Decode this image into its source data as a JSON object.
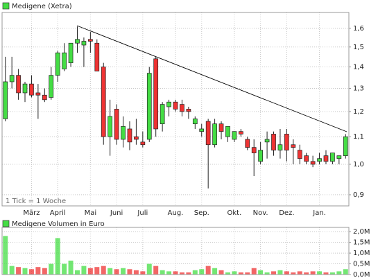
{
  "chart_data": [
    {
      "type": "candlestick",
      "title": "Medigene (Xetra)",
      "log_scale": true,
      "grid": true,
      "annotation": "1 Tick = 1 Woche",
      "up_color": "#44dd44",
      "down_color": "#ee3333",
      "categories": [
        null,
        null,
        null,
        null,
        "März",
        null,
        null,
        null,
        "April",
        null,
        null,
        null,
        null,
        "Mai",
        null,
        null,
        null,
        "Juni",
        null,
        null,
        null,
        "Juli",
        null,
        null,
        null,
        null,
        "Aug.",
        null,
        null,
        null,
        "Sep.",
        null,
        null,
        null,
        null,
        "Okt.",
        null,
        null,
        null,
        "Nov.",
        null,
        null,
        null,
        "Dez.",
        null,
        null,
        null,
        null,
        "Jan.",
        null,
        null,
        null,
        null
      ],
      "series": [
        {
          "name": "Medigene (Xetra)",
          "color": "#44dd44",
          "open": [
            1.17,
            1.33,
            1.36,
            1.28,
            1.32,
            1.28,
            1.27,
            1.26,
            1.36,
            1.39,
            1.42,
            1.52,
            1.51,
            1.54,
            1.52,
            1.4,
            1.1,
            1.21,
            1.09,
            1.13,
            1.1,
            1.08,
            1.09,
            1.44,
            1.15,
            1.22,
            1.24,
            1.23,
            1.21,
            1.15,
            1.12,
            1.16,
            1.07,
            1.15,
            1.1,
            1.09,
            1.12,
            1.09,
            1.06,
            1.01,
            1.08,
            1.11,
            1.05,
            1.11,
            1.07,
            1.05,
            1.03,
            1.01,
            1.01,
            1.03,
            1.01,
            1.02,
            1.03
          ],
          "high": [
            1.45,
            1.45,
            1.39,
            1.33,
            1.36,
            1.32,
            1.3,
            1.4,
            1.48,
            1.52,
            1.52,
            1.61,
            1.55,
            1.58,
            1.54,
            1.42,
            1.25,
            1.23,
            1.18,
            1.16,
            1.17,
            1.12,
            1.4,
            1.45,
            1.24,
            1.25,
            1.25,
            1.25,
            1.22,
            1.18,
            1.15,
            1.17,
            1.17,
            1.16,
            1.14,
            1.12,
            1.13,
            1.1,
            1.09,
            1.08,
            1.12,
            1.12,
            1.13,
            1.13,
            1.09,
            1.07,
            1.04,
            1.03,
            1.04,
            1.05,
            1.04,
            1.03,
            1.11
          ],
          "low": [
            1.16,
            1.3,
            1.25,
            1.24,
            1.26,
            1.17,
            1.24,
            1.25,
            1.33,
            1.38,
            1.4,
            1.47,
            1.4,
            1.47,
            1.38,
            1.07,
            1.03,
            1.07,
            1.06,
            1.05,
            1.07,
            1.06,
            1.08,
            1.1,
            1.12,
            1.18,
            1.2,
            1.18,
            1.17,
            1.13,
            1.1,
            0.92,
            1.06,
            1.09,
            1.08,
            1.08,
            1.1,
            1.05,
            0.96,
            1.0,
            1.02,
            1.03,
            1.02,
            1.01,
            1.0,
            1.0,
            1.0,
            0.99,
            1.0,
            1.0,
            1.0,
            1.0,
            1.02
          ],
          "close": [
            1.33,
            1.36,
            1.28,
            1.32,
            1.27,
            1.27,
            1.25,
            1.36,
            1.47,
            1.47,
            1.52,
            1.54,
            1.53,
            1.53,
            1.38,
            1.1,
            1.18,
            1.09,
            1.14,
            1.08,
            1.09,
            1.07,
            1.37,
            1.13,
            1.23,
            1.24,
            1.21,
            1.2,
            1.2,
            1.17,
            1.13,
            1.07,
            1.15,
            1.12,
            1.14,
            1.12,
            1.11,
            1.06,
            1.04,
            1.05,
            1.09,
            1.05,
            1.07,
            1.05,
            1.06,
            1.02,
            1.01,
            1.0,
            1.02,
            1.01,
            1.04,
            1.03,
            1.1
          ]
        }
      ],
      "ylim": [
        0.866,
        1.69
      ],
      "yticks": [
        {
          "value": 0.9,
          "label": "0,9"
        },
        {
          "value": 1.0,
          "label": "1,0"
        },
        {
          "value": 1.1,
          "label": "1,1"
        },
        {
          "value": 1.2,
          "label": "1,2"
        },
        {
          "value": 1.3,
          "label": "1,3"
        },
        {
          "value": 1.4,
          "label": "1,4"
        },
        {
          "value": 1.5,
          "label": "1,5"
        },
        {
          "value": 1.6,
          "label": "1,6"
        }
      ]
    },
    {
      "type": "bar",
      "title": "Medigene Volumen in Euro",
      "grid": true,
      "color": "#44dd44",
      "values": [
        1800000,
        400000,
        350000,
        300000,
        250000,
        350000,
        300000,
        500000,
        1700000,
        500000,
        650000,
        200000,
        400000,
        300000,
        350000,
        400000,
        300000,
        250000,
        300000,
        250000,
        200000,
        150000,
        500000,
        400000,
        200000,
        150000,
        150000,
        100000,
        100000,
        200000,
        250000,
        400000,
        300000,
        200000,
        100000,
        150000,
        100000,
        100000,
        300000,
        200000,
        100000,
        150000,
        200000,
        150000,
        100000,
        150000,
        100000,
        150000,
        150000,
        100000,
        100000,
        150000,
        250000
      ],
      "ylim": [
        0,
        2200000
      ],
      "yticks": [
        {
          "value": 0,
          "label": "0,0M"
        },
        {
          "value": 500000,
          "label": "0,5M"
        },
        {
          "value": 1000000,
          "label": "1,0M"
        },
        {
          "value": 1500000,
          "label": "1,5M"
        },
        {
          "value": 2000000,
          "label": "2,0M"
        }
      ]
    }
  ]
}
